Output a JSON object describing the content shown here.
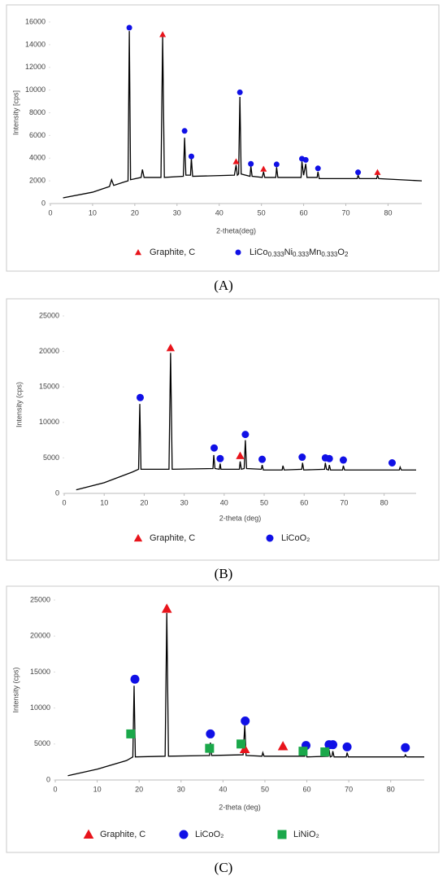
{
  "chart_data": [
    {
      "type": "line",
      "caption": "(A)",
      "xlabel": "2-theta(deg)",
      "ylabel": "Intensity [cps]",
      "xlim": [
        0,
        88
      ],
      "xticks": [
        0,
        10,
        20,
        30,
        40,
        50,
        60,
        70,
        80
      ],
      "ylim": [
        0,
        16000
      ],
      "yticks": [
        0,
        2000,
        4000,
        6000,
        8000,
        10000,
        12000,
        14000,
        16000
      ],
      "grid": false,
      "trace": {
        "color": "#000000",
        "x": [
          3,
          10,
          14,
          14.5,
          15,
          17.5,
          18.4,
          18.7,
          19.0,
          21.5,
          21.8,
          22.2,
          26.2,
          26.6,
          27.0,
          31.5,
          31.8,
          32.1,
          33.2,
          33.4,
          33.7,
          43.6,
          44.0,
          44.3,
          44.6,
          44.9,
          45.2,
          47.3,
          47.5,
          47.8,
          50.2,
          50.5,
          50.8,
          53.4,
          53.6,
          53.9,
          59.4,
          59.6,
          60.0,
          60.5,
          60.8,
          63.2,
          63.4,
          63.7,
          72.7,
          72.9,
          73.2,
          77.3,
          77.5,
          77.8,
          88
        ],
        "values": [
          500,
          1000,
          1500,
          2100,
          1600,
          1900,
          2000,
          15200,
          2100,
          2300,
          3000,
          2300,
          2300,
          14700,
          2300,
          2400,
          5800,
          2500,
          2500,
          4000,
          2400,
          2500,
          3400,
          2500,
          2600,
          9400,
          2600,
          2400,
          3300,
          2400,
          2300,
          2800,
          2300,
          2300,
          3200,
          2300,
          2300,
          3700,
          2500,
          3500,
          2300,
          2300,
          2800,
          2200,
          2200,
          2500,
          2200,
          2200,
          2500,
          2200,
          2000
        ]
      },
      "series": [
        {
          "name": "Graphite, C",
          "color": "#e8141b",
          "marker": "triangle",
          "x": [
            26.6,
            44.0,
            50.5,
            77.5
          ],
          "values": [
            14900,
            3700,
            3050,
            2750
          ]
        },
        {
          "name": "LiCo0.333Ni0.333Mn0.333O2",
          "color": "#1010e6",
          "marker": "circle",
          "x": [
            18.7,
            31.8,
            33.4,
            44.9,
            47.5,
            53.6,
            59.6,
            60.5,
            63.4,
            72.9
          ],
          "values": [
            15500,
            6400,
            4150,
            9800,
            3500,
            3450,
            3950,
            3850,
            3100,
            2750
          ]
        }
      ]
    },
    {
      "type": "line",
      "caption": "(B)",
      "xlabel": "2-theta (deg)",
      "ylabel": "Intensity (cps)",
      "xlim": [
        0,
        88
      ],
      "xticks": [
        0,
        10,
        20,
        30,
        40,
        50,
        60,
        70,
        80
      ],
      "ylim": [
        0,
        25000
      ],
      "yticks": [
        0,
        5000,
        10000,
        15000,
        20000,
        25000
      ],
      "grid": false,
      "trace": {
        "color": "#000000",
        "x": [
          3,
          10,
          17,
          18.6,
          18.9,
          19.2,
          26.2,
          26.6,
          27,
          37.2,
          37.4,
          37.7,
          38.8,
          39.0,
          39.2,
          43.8,
          44.0,
          44.3,
          45.0,
          45.3,
          45.6,
          49.3,
          49.5,
          49.8,
          54.5,
          54.7,
          55.0,
          59.4,
          59.6,
          59.9,
          65.1,
          65.3,
          65.6,
          66.1,
          66.3,
          66.6,
          69.6,
          69.8,
          70.1,
          83.8,
          84,
          84.3,
          88
        ],
        "values": [
          500,
          1500,
          3000,
          3400,
          12600,
          3400,
          3400,
          19800,
          3400,
          3500,
          5400,
          3500,
          3400,
          4200,
          3400,
          3400,
          4500,
          3400,
          3500,
          7500,
          3500,
          3400,
          4000,
          3300,
          3300,
          3900,
          3300,
          3400,
          4300,
          3300,
          3400,
          4300,
          3400,
          3300,
          4000,
          3300,
          3300,
          3900,
          3300,
          3300,
          3700,
          3300,
          3300
        ]
      },
      "series": [
        {
          "name": "Graphite, C",
          "color": "#e8141b",
          "marker": "triangle",
          "x": [
            26.6,
            44.0
          ],
          "values": [
            20500,
            5300
          ]
        },
        {
          "name": "LiCoO₂",
          "color": "#1010e6",
          "marker": "circle",
          "x": [
            19,
            37.5,
            39,
            45.3,
            49.5,
            59.5,
            65.3,
            66.3,
            69.8,
            82
          ],
          "values": [
            13500,
            6400,
            4900,
            8300,
            4800,
            5100,
            5000,
            4900,
            4700,
            4300
          ]
        }
      ]
    },
    {
      "type": "line",
      "caption": "(C)",
      "xlabel": "2-theta (deg)",
      "ylabel": "Intensity (cps)",
      "xlim": [
        0,
        88
      ],
      "xticks": [
        0,
        10,
        20,
        30,
        40,
        50,
        60,
        70,
        80
      ],
      "ylim": [
        0,
        25000
      ],
      "yticks": [
        0,
        5000,
        10000,
        15000,
        20000,
        25000
      ],
      "grid": false,
      "trace": {
        "color": "#000000",
        "x": [
          3,
          10,
          17,
          18.5,
          18.8,
          19.1,
          26.2,
          26.6,
          27,
          36.8,
          37,
          37.3,
          44.8,
          45.2,
          45.5,
          49.3,
          49.5,
          49.8,
          59.5,
          59.8,
          60,
          65.1,
          65.3,
          65.6,
          66,
          66.2,
          66.5,
          69.4,
          69.6,
          69.9,
          83.3,
          83.5,
          83.8,
          88
        ],
        "values": [
          600,
          1500,
          2700,
          3200,
          13100,
          3200,
          3300,
          23200,
          3300,
          3400,
          5200,
          3400,
          3500,
          7600,
          3400,
          3300,
          3800,
          3300,
          3300,
          4200,
          3200,
          3300,
          4200,
          3200,
          3300,
          4000,
          3200,
          3200,
          3800,
          3200,
          3200,
          3500,
          3200,
          3200
        ]
      },
      "series": [
        {
          "name": "Graphite, C",
          "color": "#e8141b",
          "marker": "triangle",
          "x": [
            26.6,
            45.2,
            54.3
          ],
          "values": [
            23800,
            4300,
            4700
          ]
        },
        {
          "name": "LiCoO₂",
          "color": "#1010e6",
          "marker": "circle",
          "x": [
            19,
            37,
            45.3,
            59.8,
            65.3,
            66.2,
            69.6,
            83.5
          ],
          "values": [
            14000,
            6400,
            8200,
            4800,
            4900,
            4900,
            4600,
            4500
          ]
        },
        {
          "name": "LiNiO₂",
          "color": "#1aa84a",
          "marker": "square",
          "x": [
            18,
            36.8,
            44.3,
            59.1,
            64.3
          ],
          "values": [
            6400,
            4400,
            5000,
            4000,
            3900
          ]
        }
      ]
    }
  ]
}
